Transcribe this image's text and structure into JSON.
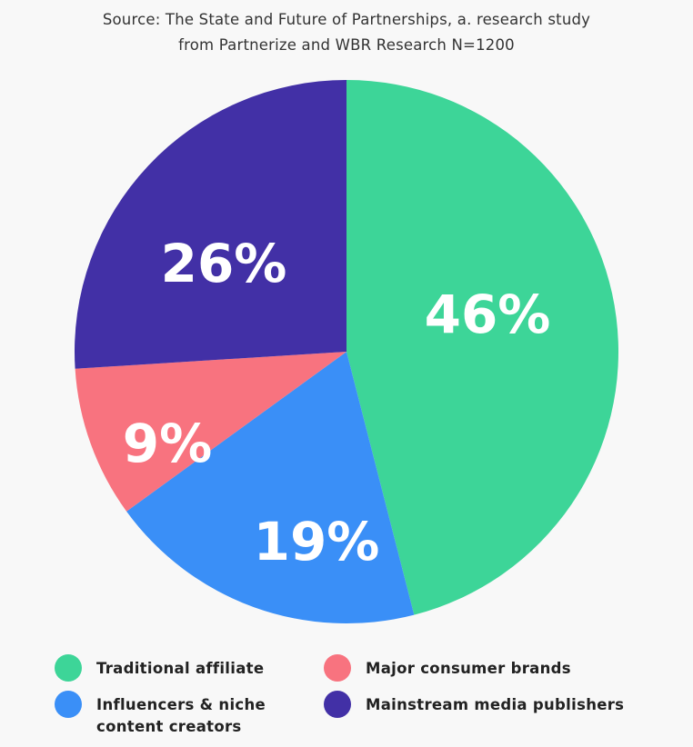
{
  "source": {
    "line1": "Source: The State and Future of Partnerships, a. research study",
    "line2": "from Partnerize and WBR Research N=1200"
  },
  "chart_data": {
    "type": "pie",
    "title": "Source: The State and Future of Partnerships, a. research study from Partnerize and WBR Research N=1200",
    "categories": [
      "Traditional affiliate",
      "Influencers & niche content creators",
      "Major consumer brands",
      "Mainstream media publishers"
    ],
    "values": [
      46,
      19,
      9,
      26
    ],
    "labels": [
      "46%",
      "19%",
      "9%",
      "26%"
    ],
    "colors": [
      "#3dd598",
      "#3a8ff7",
      "#f8737f",
      "#4230a6"
    ],
    "start_angle": "12 o'clock, clockwise",
    "legend_position": "bottom"
  },
  "legend": [
    {
      "label_line1": "Traditional affiliate",
      "label_line2": "",
      "color": "#3dd598"
    },
    {
      "label_line1": "Major consumer brands",
      "label_line2": "",
      "color": "#f8737f"
    },
    {
      "label_line1": "Influencers & niche",
      "label_line2": "content creators",
      "color": "#3a8ff7"
    },
    {
      "label_line1": "Mainstream media publishers",
      "label_line2": "",
      "color": "#4230a6"
    }
  ]
}
